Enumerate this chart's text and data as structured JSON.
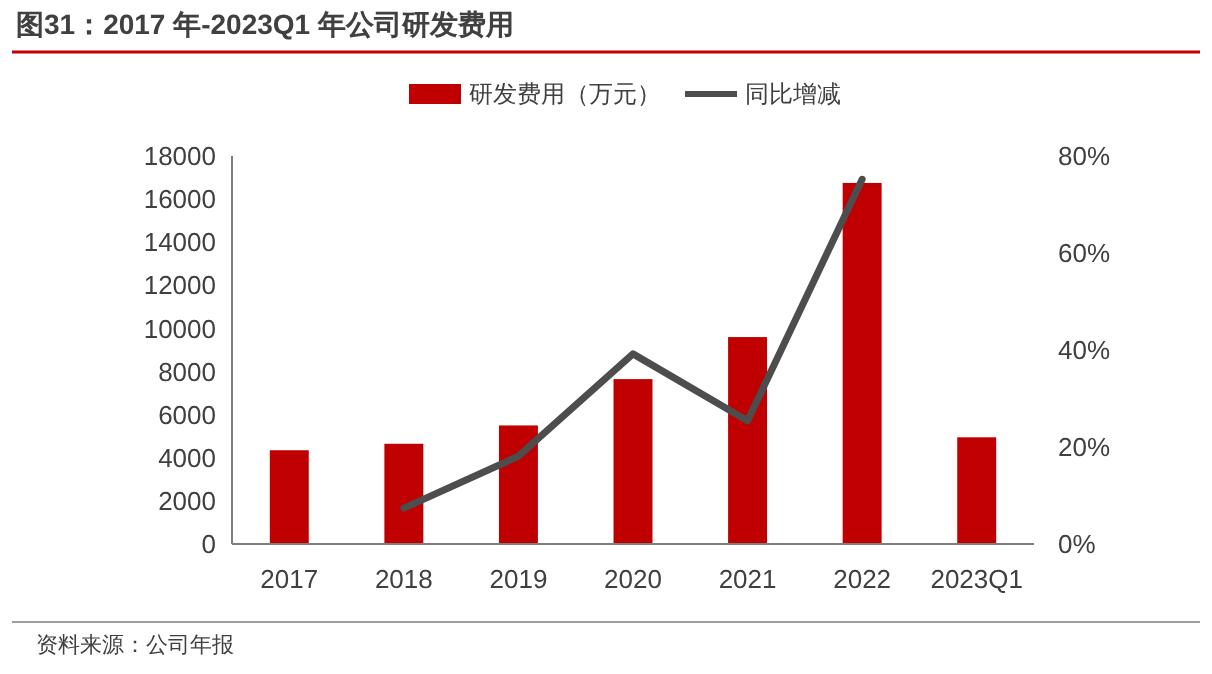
{
  "chart_data": {
    "type": "bar",
    "title": "图31：2017 年-2023Q1 年公司研发费用",
    "categories": [
      "2017",
      "2018",
      "2019",
      "2020",
      "2021",
      "2022",
      "2023Q1"
    ],
    "series": [
      {
        "name": "研发费用（万元）",
        "color": "#c00000",
        "values": [
          4350,
          4650,
          5500,
          7650,
          9600,
          16750,
          4950
        ]
      },
      {
        "name": "同比增减",
        "type": "line",
        "axis": "y2",
        "color": "#4d4d4d",
        "values": [
          null,
          7.4,
          18.1,
          39.2,
          25.4,
          75.2,
          null
        ]
      }
    ],
    "ylim": [
      0,
      18000
    ],
    "yticks": [
      0,
      2000,
      4000,
      6000,
      8000,
      10000,
      12000,
      14000,
      16000,
      18000
    ],
    "y2lim": [
      0,
      80
    ],
    "y2ticks": [
      {
        "value": 0,
        "label": "0%"
      },
      {
        "value": 20,
        "label": "20%"
      },
      {
        "value": 40,
        "label": "40%"
      },
      {
        "value": 60,
        "label": "60%"
      },
      {
        "value": 80,
        "label": "80%"
      }
    ],
    "legend": "top",
    "marker": "none",
    "annotations": [
      "资料来源：公司年报"
    ]
  }
}
